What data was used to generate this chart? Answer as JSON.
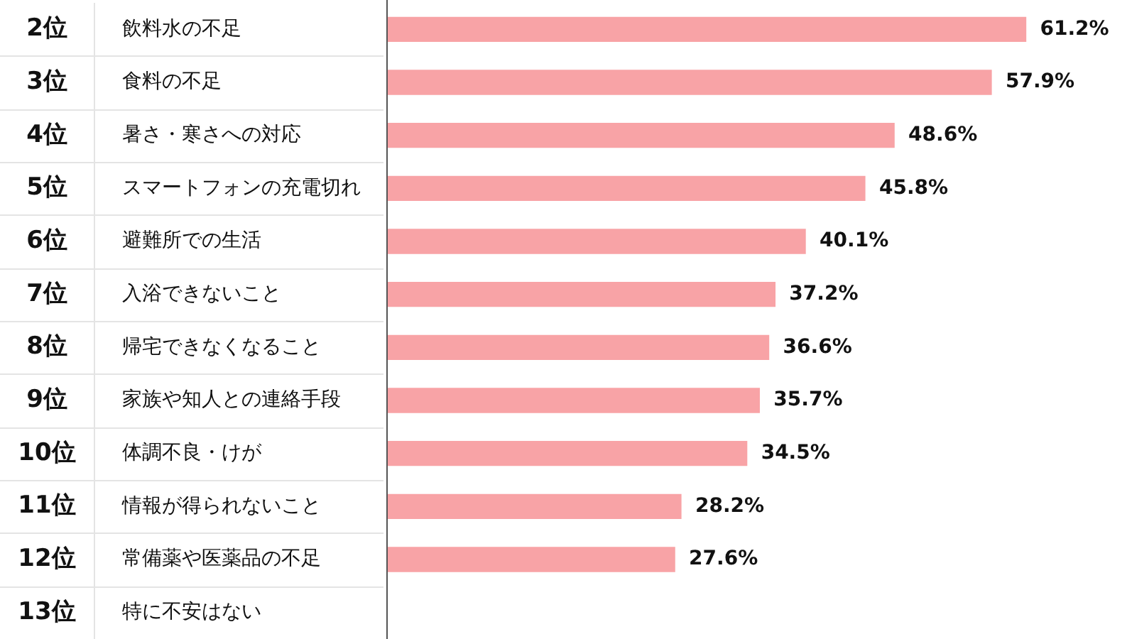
{
  "chart_data": {
    "type": "bar",
    "orientation": "horizontal",
    "legend": false,
    "tick_labels": "y",
    "color": "#f8a3a6",
    "categories": [
      "飲料水の不足",
      "食料の不足",
      "暑さ・寒さへの対応",
      "スマートフォンの充電切れ",
      "避難所での生活",
      "入浴できないこと",
      "帰宅できなくなること",
      "家族や知人との連絡手段",
      "体調不良・けが",
      "情報が得られないこと",
      "常備薬や医薬品の不足",
      "特に不安はない"
    ],
    "annotations": [
      "2位",
      "3位",
      "4位",
      "5位",
      "6位",
      "7位",
      "8位",
      "9位",
      "10位",
      "11位",
      "12位",
      "13位"
    ],
    "values": [
      61.2,
      57.9,
      48.6,
      45.8,
      40.1,
      37.2,
      36.6,
      35.7,
      34.5,
      28.2,
      27.6,
      null
    ],
    "value_labels": [
      "61.2%",
      "57.9%",
      "48.6%",
      "45.8%",
      "40.1%",
      "37.2%",
      "36.6%",
      "35.7%",
      "34.5%",
      "28.2%",
      "27.6%",
      null
    ]
  }
}
